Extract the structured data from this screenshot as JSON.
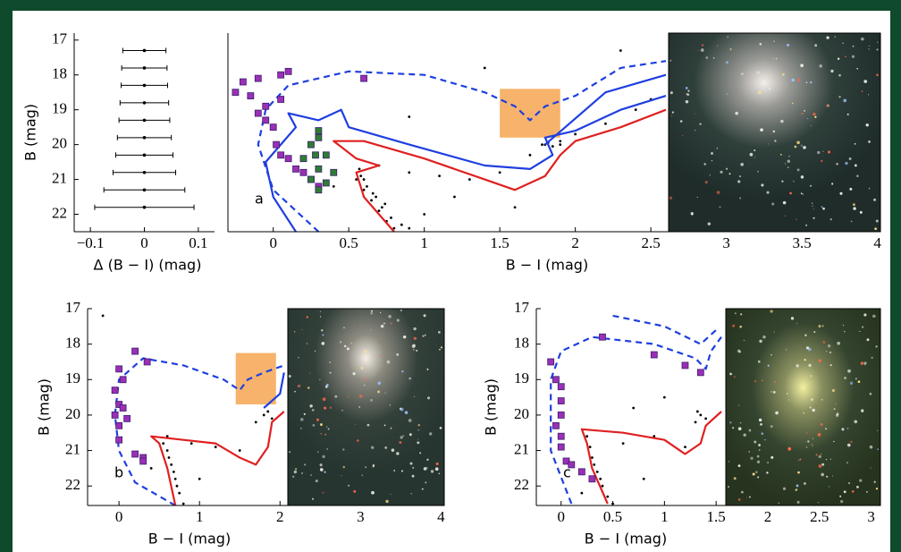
{
  "chart_data": [
    {
      "type": "errorbar",
      "xlabel": "Δ (B − I) (mag)",
      "ylabel": "B (mag)",
      "xlim": [
        -0.13,
        0.13
      ],
      "ylim": [
        16.8,
        22.5
      ],
      "xticks": [
        {
          "value": -0.1,
          "label": "−0.1"
        },
        0,
        0.1
      ],
      "yticks": [
        17,
        18,
        19,
        20,
        21,
        22
      ],
      "series": [
        {
          "color": "#000000",
          "x": [
            0,
            0,
            0,
            0,
            0,
            0,
            0,
            0,
            0,
            0
          ],
          "values": [
            17.3,
            17.8,
            18.3,
            18.8,
            19.3,
            19.8,
            20.3,
            20.8,
            21.3,
            21.8
          ],
          "xerr": [
            0.04,
            0.042,
            0.043,
            0.045,
            0.047,
            0.05,
            0.053,
            0.058,
            0.075,
            0.092
          ]
        }
      ]
    },
    {
      "type": "scatter",
      "xlabel": "B − I (mag)",
      "annotation": "a",
      "xlim": [
        -0.3,
        4.02
      ],
      "ylim": [
        16.8,
        22.5
      ],
      "xticks": [
        0,
        0.5,
        1,
        1.5,
        2,
        2.5,
        3,
        3.5,
        4
      ],
      "region": {
        "x": [
          1.5,
          1.9
        ],
        "y": [
          18.4,
          19.8
        ],
        "color": "#f7b36b"
      },
      "series": [
        {
          "kind": "scatter",
          "marker": "dot",
          "color": "#000000",
          "x": [
            0.55,
            0.6,
            0.65,
            0.7,
            0.75,
            0.8,
            0.58,
            0.62,
            0.68,
            0.72,
            0.78,
            0.85,
            0.6,
            0.66,
            0.74,
            0.9,
            0.57,
            0.7,
            0.9,
            1.1,
            1.3,
            1.5,
            1.7,
            1.8,
            1.82,
            1.85,
            1.9,
            2.0,
            2.2,
            2.4,
            2.5,
            1.2,
            1.0,
            1.6,
            0.4,
            2.3,
            1.4,
            0.9,
            1.9,
            1.78
          ],
          "values": [
            21.0,
            21.3,
            21.6,
            21.9,
            22.2,
            22.4,
            20.9,
            21.2,
            21.5,
            21.8,
            22.1,
            22.3,
            21.0,
            21.4,
            21.7,
            22.4,
            20.7,
            20.6,
            20.8,
            20.9,
            21.0,
            20.8,
            20.3,
            20.0,
            19.95,
            20.05,
            19.9,
            19.7,
            19.4,
            19.0,
            18.7,
            21.5,
            22.0,
            21.8,
            21.2,
            17.3,
            17.8,
            19.2,
            20.0,
            20.0
          ]
        },
        {
          "kind": "line",
          "dash": true,
          "color": "#1f3fe0",
          "x": [
            0.3,
            0.0,
            -0.1,
            -0.05,
            0.1,
            0.5,
            1.0,
            1.4,
            1.6,
            1.7,
            1.8,
            2.0,
            2.3,
            2.6
          ],
          "values": [
            22.5,
            21.3,
            20.0,
            19.0,
            18.3,
            17.9,
            18.0,
            18.5,
            18.9,
            19.3,
            18.9,
            18.6,
            17.8,
            17.6
          ]
        },
        {
          "kind": "line",
          "dash": false,
          "color": "#1f3fe0",
          "x": [
            0.15,
            0.0,
            -0.05,
            0.05,
            0.15,
            0.1,
            0.3,
            0.45,
            0.5,
            0.9,
            1.4,
            1.7,
            1.85,
            1.8,
            2.0,
            2.3,
            2.6
          ],
          "values": [
            22.5,
            21.5,
            20.5,
            20.0,
            19.5,
            19.1,
            19.3,
            19.0,
            19.5,
            20.0,
            20.6,
            20.7,
            20.3,
            19.8,
            19.6,
            19.0,
            18.6
          ]
        },
        {
          "kind": "line",
          "dash": false,
          "color": "#1f3fe0",
          "x": [
            1.8,
            2.2,
            2.6
          ],
          "values": [
            20.0,
            18.5,
            18.0
          ]
        },
        {
          "kind": "line",
          "dash": false,
          "color": "#e02020",
          "x": [
            0.8,
            0.6,
            0.55,
            0.7,
            0.55,
            0.4,
            0.6,
            1.0,
            1.4,
            1.6,
            1.8,
            1.9,
            2.0,
            2.3,
            2.6
          ],
          "values": [
            22.5,
            21.5,
            20.8,
            20.6,
            20.4,
            19.9,
            19.9,
            20.4,
            21.0,
            21.3,
            20.9,
            20.3,
            19.9,
            19.5,
            19.0
          ]
        },
        {
          "kind": "scatter",
          "marker": "square",
          "color": "#9b2fb5",
          "x": [
            -0.2,
            -0.25,
            -0.15,
            -0.1,
            -0.05,
            0.05,
            0.05,
            0.1,
            0.6,
            -0.05,
            0.0,
            -0.1,
            0.02,
            0.05,
            0.1,
            0.15,
            0.2,
            0.25,
            0.3
          ],
          "values": [
            18.2,
            18.5,
            18.6,
            18.1,
            18.9,
            18.7,
            18.0,
            17.9,
            18.1,
            19.3,
            19.5,
            19.1,
            20.0,
            20.3,
            20.4,
            20.7,
            20.8,
            21.0,
            21.2
          ]
        },
        {
          "kind": "scatter",
          "marker": "square",
          "color": "#2e7d32",
          "x": [
            0.3,
            0.3,
            0.25,
            0.28,
            0.2,
            0.35,
            0.3,
            0.25,
            0.3,
            0.35,
            0.4
          ],
          "values": [
            19.6,
            19.8,
            20.0,
            20.3,
            20.4,
            20.3,
            20.7,
            21.0,
            21.3,
            21.1,
            20.8
          ]
        }
      ]
    },
    {
      "type": "scatter",
      "xlabel": "B − I (mag)",
      "ylabel": "B (mag)",
      "annotation": "b",
      "xlim": [
        -0.39,
        4.04
      ],
      "ylim": [
        17,
        22.55
      ],
      "xticks": [
        0,
        1,
        2,
        3,
        4
      ],
      "yticks": [
        17,
        18,
        19,
        20,
        21,
        22
      ],
      "region": {
        "x": [
          1.45,
          1.95
        ],
        "y": [
          18.25,
          19.7
        ],
        "color": "#f7b36b"
      },
      "series": [
        {
          "kind": "scatter",
          "marker": "dot",
          "color": "#000000",
          "x": [
            0.6,
            0.65,
            0.7,
            0.75,
            0.8,
            0.55,
            0.62,
            0.68,
            0.72,
            0.6,
            0.9,
            1.2,
            1.5,
            1.7,
            1.8,
            1.85,
            1.9,
            1.0,
            0.4,
            -0.2
          ],
          "values": [
            21.0,
            21.4,
            21.8,
            22.2,
            22.5,
            20.8,
            21.2,
            21.6,
            22.0,
            20.6,
            20.8,
            20.9,
            21.0,
            20.2,
            20.0,
            19.9,
            20.1,
            21.8,
            21.5,
            17.2
          ]
        },
        {
          "kind": "line",
          "dash": true,
          "color": "#1f3fe0",
          "x": [
            0.7,
            0.2,
            0.0,
            -0.05,
            0.0,
            0.3,
            0.8,
            1.3,
            1.5,
            1.6,
            1.8,
            2.05
          ],
          "values": [
            22.55,
            21.9,
            21.0,
            20.0,
            19.0,
            18.4,
            18.6,
            19.0,
            19.3,
            19.0,
            18.8,
            18.6
          ]
        },
        {
          "kind": "line",
          "dash": false,
          "color": "#1f3fe0",
          "x": [
            1.8,
            2.0,
            2.05
          ],
          "values": [
            19.8,
            19.4,
            18.8
          ]
        },
        {
          "kind": "line",
          "dash": false,
          "color": "#e02020",
          "x": [
            0.7,
            0.6,
            0.5,
            0.4,
            0.8,
            1.2,
            1.5,
            1.7,
            1.85,
            1.9,
            2.05
          ],
          "values": [
            22.55,
            21.5,
            20.8,
            20.6,
            20.7,
            20.8,
            21.2,
            21.4,
            20.9,
            20.2,
            19.9
          ]
        },
        {
          "kind": "scatter",
          "marker": "square",
          "color": "#9b2fb5",
          "x": [
            0.0,
            0.05,
            -0.05,
            0.0,
            -0.05,
            0.05,
            0.0,
            0.1,
            0.2,
            0.35,
            0.3,
            0.2,
            0.3,
            0.0
          ],
          "values": [
            18.7,
            19.0,
            19.3,
            19.7,
            20.0,
            19.8,
            20.3,
            20.1,
            18.2,
            18.5,
            21.2,
            21.1,
            21.3,
            20.7
          ]
        }
      ]
    },
    {
      "type": "scatter",
      "xlabel": "B − I (mag)",
      "ylabel": "B (mag)",
      "annotation": "c",
      "xlim": [
        -0.24,
        3.09
      ],
      "ylim": [
        17,
        22.55
      ],
      "xticks": [
        0,
        0.5,
        1,
        1.5,
        2,
        2.5,
        3
      ],
      "yticks": [
        17,
        18,
        19,
        20,
        21,
        22
      ],
      "series": [
        {
          "kind": "scatter",
          "marker": "dot",
          "color": "#000000",
          "x": [
            0.3,
            0.35,
            0.4,
            0.45,
            0.5,
            0.28,
            0.32,
            0.38,
            0.6,
            0.9,
            1.2,
            1.3,
            1.35,
            1.32,
            1.4,
            0.8,
            0.2,
            1.0,
            0.7,
            0.25
          ],
          "values": [
            21.2,
            21.6,
            22.0,
            22.3,
            22.5,
            20.9,
            21.4,
            21.8,
            20.8,
            20.6,
            20.9,
            20.2,
            20.0,
            19.9,
            20.1,
            21.8,
            22.2,
            19.5,
            19.8,
            20.6
          ]
        },
        {
          "kind": "line",
          "dash": true,
          "color": "#1f3fe0",
          "x": [
            0.1,
            -0.1,
            -0.1,
            0.0,
            0.3,
            0.9,
            1.3,
            1.4,
            1.45,
            1.55
          ],
          "values": [
            22.5,
            21.0,
            19.0,
            18.2,
            17.8,
            18.0,
            18.4,
            18.7,
            18.2,
            17.8
          ]
        },
        {
          "kind": "line",
          "dash": true,
          "color": "#1f3fe0",
          "x": [
            0.5,
            1.0,
            1.35,
            1.5
          ],
          "values": [
            17.2,
            17.5,
            18.0,
            17.6
          ]
        },
        {
          "kind": "line",
          "dash": false,
          "color": "#e02020",
          "x": [
            0.45,
            0.3,
            0.25,
            0.2,
            0.6,
            1.0,
            1.2,
            1.35,
            1.4,
            1.55
          ],
          "values": [
            22.5,
            21.5,
            20.8,
            20.4,
            20.5,
            20.7,
            21.1,
            20.8,
            20.3,
            19.9
          ]
        },
        {
          "kind": "scatter",
          "marker": "square",
          "color": "#9b2fb5",
          "x": [
            -0.1,
            0.0,
            -0.05,
            0.0,
            0.0,
            -0.05,
            0.0,
            0.0,
            0.05,
            0.2,
            0.1,
            0.3,
            0.4,
            0.9,
            1.2,
            1.35
          ],
          "values": [
            18.5,
            19.2,
            19.0,
            19.6,
            20.0,
            20.3,
            20.6,
            20.9,
            21.3,
            21.6,
            21.4,
            21.8,
            17.8,
            18.3,
            18.6,
            18.8
          ]
        }
      ]
    }
  ]
}
